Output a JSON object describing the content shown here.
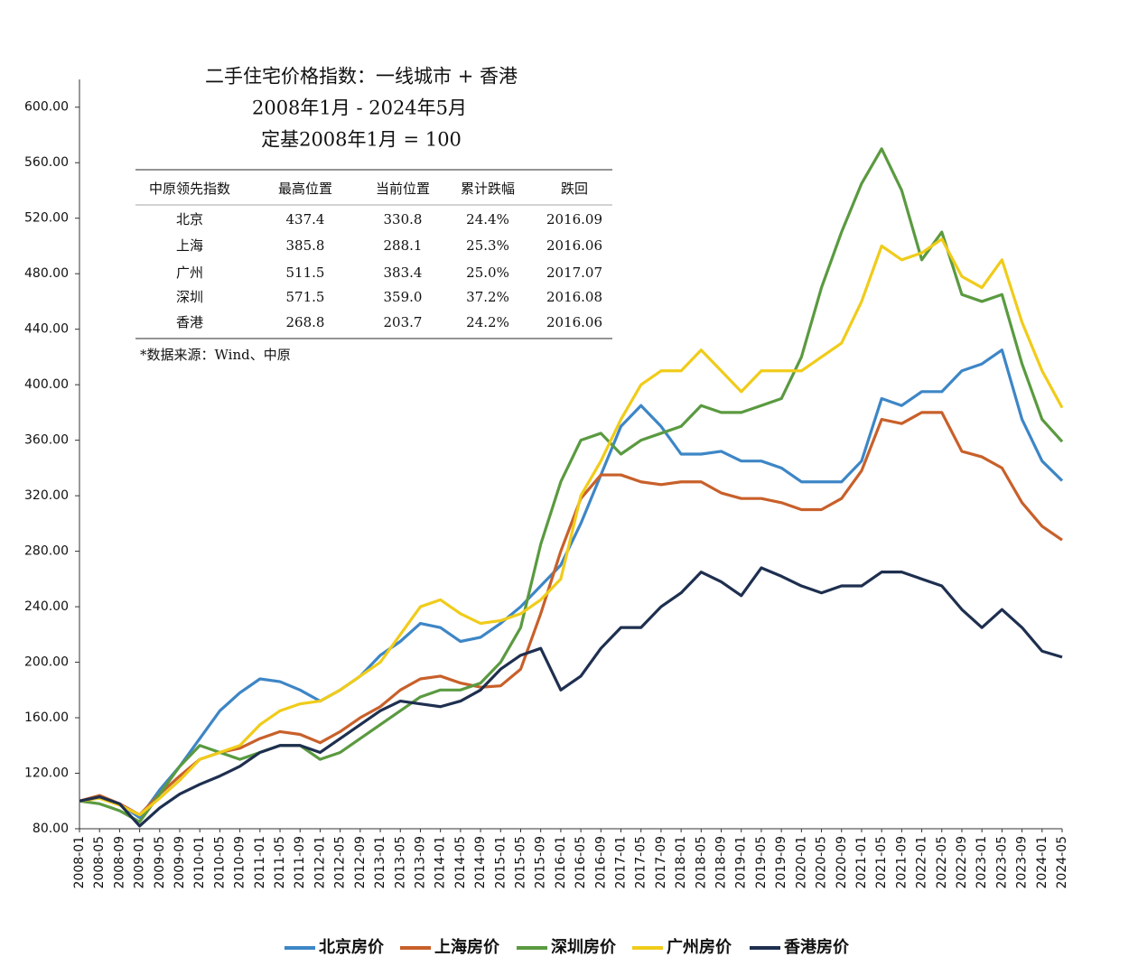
{
  "chart_data": {
    "type": "line",
    "title": "二手住宅价格指数：一线城市 + 香港",
    "subtitle": "2008年1月 - 2024年5月",
    "note": "定基2008年1月 = 100",
    "source": "*数据来源：Wind、中原",
    "table": {
      "columns": [
        "中原领先指数",
        "最高位置",
        "当前位置",
        "累计跌幅",
        "跌回"
      ],
      "rows": [
        [
          "北京",
          "437.4",
          "330.8",
          "24.4%",
          "2016.09"
        ],
        [
          "上海",
          "385.8",
          "288.1",
          "25.3%",
          "2016.06"
        ],
        [
          "广州",
          "511.5",
          "383.4",
          "25.0%",
          "2017.07"
        ],
        [
          "深圳",
          "571.5",
          "359.0",
          "37.2%",
          "2016.08"
        ],
        [
          "香港",
          "268.8",
          "203.7",
          "24.2%",
          "2016.06"
        ]
      ]
    },
    "categories": [
      "2008-01",
      "2008-05",
      "2008-09",
      "2009-01",
      "2009-05",
      "2009-09",
      "2010-01",
      "2010-05",
      "2010-09",
      "2011-01",
      "2011-05",
      "2011-09",
      "2012-01",
      "2012-05",
      "2012-09",
      "2013-01",
      "2013-05",
      "2013-09",
      "2014-01",
      "2014-05",
      "2014-09",
      "2015-01",
      "2015-05",
      "2015-09",
      "2016-01",
      "2016-05",
      "2016-09",
      "2017-01",
      "2017-05",
      "2017-09",
      "2018-01",
      "2018-05",
      "2018-09",
      "2019-01",
      "2019-05",
      "2019-09",
      "2020-01",
      "2020-05",
      "2020-09",
      "2021-01",
      "2021-05",
      "2021-09",
      "2022-01",
      "2022-05",
      "2022-09",
      "2023-01",
      "2023-05",
      "2023-09",
      "2024-01",
      "2024-05"
    ],
    "series": [
      {
        "name": "北京房价",
        "color": "#3d86c6",
        "values": [
          100,
          103,
          98,
          88,
          108,
          125,
          145,
          165,
          178,
          188,
          186,
          180,
          172,
          180,
          190,
          205,
          215,
          228,
          225,
          215,
          218,
          228,
          240,
          255,
          270,
          300,
          335,
          370,
          385,
          370,
          350,
          350,
          352,
          345,
          345,
          340,
          330,
          330,
          330,
          345,
          390,
          385,
          395,
          395,
          410,
          415,
          425,
          375,
          345,
          330.8
        ]
      },
      {
        "name": "上海房价",
        "color": "#c8602a",
        "values": [
          100,
          104,
          98,
          90,
          105,
          118,
          130,
          135,
          138,
          145,
          150,
          148,
          142,
          150,
          160,
          168,
          180,
          188,
          190,
          185,
          182,
          183,
          195,
          235,
          280,
          318,
          335,
          335,
          330,
          328,
          330,
          330,
          322,
          318,
          318,
          315,
          310,
          310,
          318,
          338,
          375,
          372,
          380,
          380,
          352,
          348,
          340,
          315,
          298,
          288.1
        ]
      },
      {
        "name": "深圳房价",
        "color": "#5a9a40",
        "values": [
          100,
          98,
          93,
          85,
          105,
          125,
          140,
          135,
          130,
          135,
          140,
          140,
          130,
          135,
          145,
          155,
          165,
          175,
          180,
          180,
          185,
          200,
          225,
          285,
          330,
          360,
          365,
          350,
          360,
          365,
          370,
          385,
          380,
          380,
          385,
          390,
          420,
          470,
          510,
          545,
          570,
          540,
          490,
          510,
          465,
          460,
          465,
          415,
          375,
          359
        ]
      },
      {
        "name": "广州房价",
        "color": "#f0cc1a",
        "values": [
          100,
          102,
          97,
          90,
          102,
          115,
          130,
          135,
          140,
          155,
          165,
          170,
          172,
          180,
          190,
          200,
          220,
          240,
          245,
          235,
          228,
          230,
          235,
          245,
          260,
          320,
          345,
          375,
          400,
          410,
          410,
          425,
          410,
          395,
          410,
          410,
          410,
          420,
          430,
          460,
          500,
          490,
          495,
          505,
          478,
          470,
          490,
          445,
          410,
          383.4
        ]
      },
      {
        "name": "香港房价",
        "color": "#1e2f4f",
        "values": [
          100,
          103,
          98,
          82,
          95,
          105,
          112,
          118,
          125,
          135,
          140,
          140,
          135,
          145,
          155,
          165,
          172,
          170,
          168,
          172,
          180,
          195,
          205,
          210,
          180,
          190,
          210,
          225,
          225,
          240,
          250,
          265,
          258,
          248,
          268,
          262,
          255,
          250,
          255,
          255,
          265,
          265,
          260,
          255,
          238,
          225,
          238,
          225,
          208,
          203.7
        ]
      }
    ],
    "ylim": [
      80,
      620
    ],
    "yticks": [
      {
        "value": 80,
        "label": "80.00"
      },
      {
        "value": 120,
        "label": "120.00"
      },
      {
        "value": 160,
        "label": "160.00"
      },
      {
        "value": 200,
        "label": "200.00"
      },
      {
        "value": 240,
        "label": "240.00"
      },
      {
        "value": 280,
        "label": "280.00"
      },
      {
        "value": 320,
        "label": "320.00"
      },
      {
        "value": 360,
        "label": "360.00"
      },
      {
        "value": 400,
        "label": "400.00"
      },
      {
        "value": 440,
        "label": "440.00"
      },
      {
        "value": 480,
        "label": "480.00"
      },
      {
        "value": 520,
        "label": "520.00"
      },
      {
        "value": 560,
        "label": "560.00"
      },
      {
        "value": 600,
        "label": "600.00"
      }
    ],
    "grid": false
  }
}
